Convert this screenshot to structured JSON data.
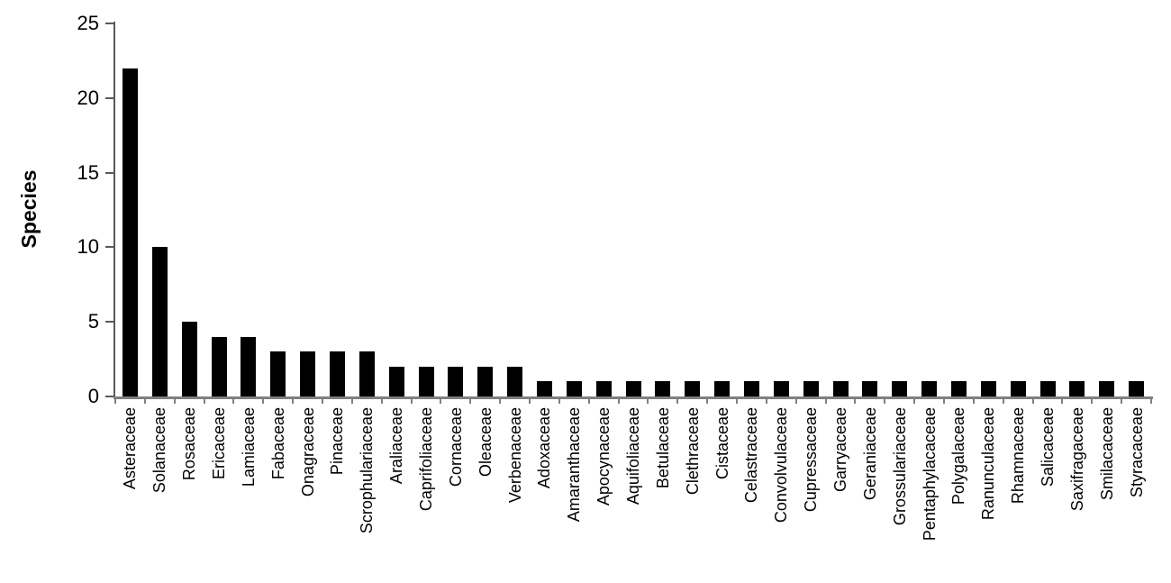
{
  "chart_data": {
    "type": "bar",
    "title": "",
    "xlabel": "",
    "ylabel": "Species",
    "ylim": [
      0,
      25
    ],
    "yticks": [
      0,
      5,
      10,
      15,
      20,
      25
    ],
    "grid": false,
    "legend": "none",
    "bar_color": "#000000",
    "y_axis_color": "#595959",
    "x_axis_color": "#7f7f7f",
    "text_color": "#000000",
    "background_color": "#ffffff",
    "categories": [
      "Asteraceae",
      "Solanaceae",
      "Rosaceae",
      "Ericaceae",
      "Lamiaceae",
      "Fabaceae",
      "Onagraceae",
      "Pinaceae",
      "Scrophulariaceae",
      "Araliaceae",
      "Caprifoliaceae",
      "Cornaceae",
      "Oleaceae",
      "Verbenaceae",
      "Adoxaceae",
      "Amaranthaceae",
      "Apocynaceae",
      "Aquifoliaceae",
      "Betulaceae",
      "Clethraceae",
      "Cistaceae",
      "Celastraceae",
      "Convolvulaceae",
      "Cupressaceae",
      "Garryaceae",
      "Geraniaceae",
      "Grossulariaceae",
      "Pentaphylacaceae",
      "Polygalaceae",
      "Ranunculaceae",
      "Rhamnaceae",
      "Salicaceae",
      "Saxifragaceae",
      "Smilacaceae",
      "Styracaceae"
    ],
    "values": [
      22,
      10,
      5,
      4,
      4,
      3,
      3,
      3,
      3,
      2,
      2,
      2,
      2,
      2,
      1,
      1,
      1,
      1,
      1,
      1,
      1,
      1,
      1,
      1,
      1,
      1,
      1,
      1,
      1,
      1,
      1,
      1,
      1,
      1,
      1
    ]
  }
}
